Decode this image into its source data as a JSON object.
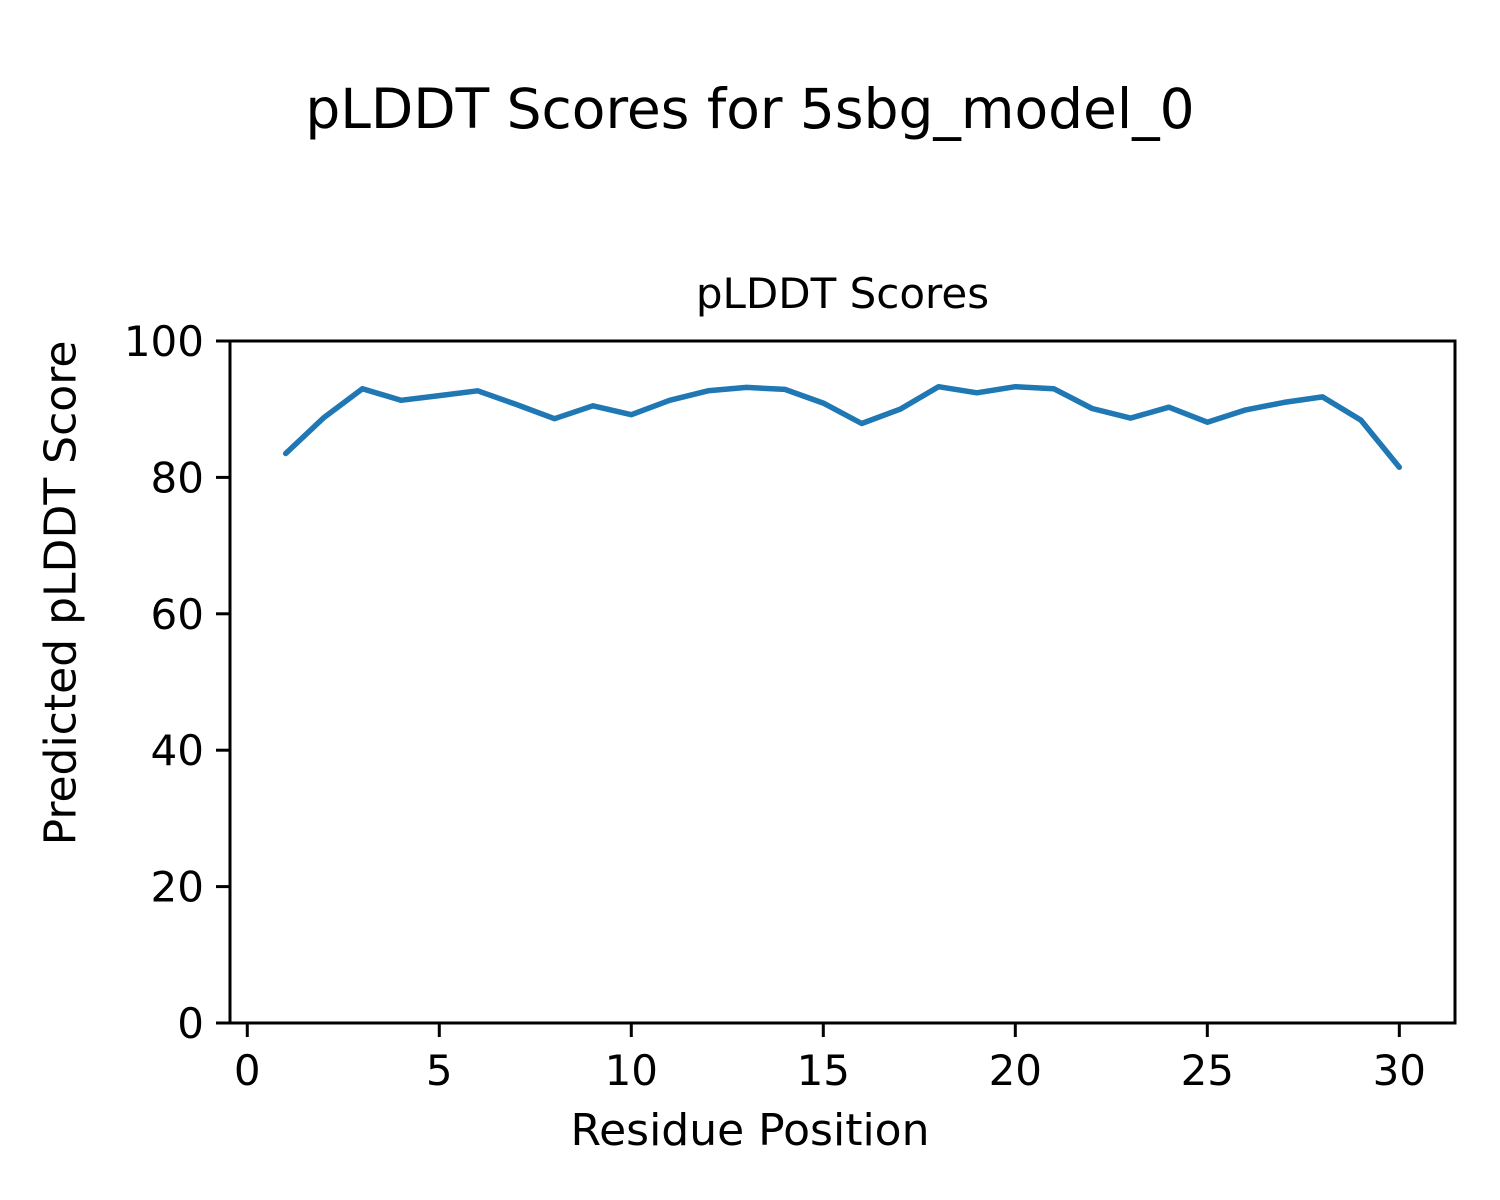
{
  "figure": {
    "suptitle": "pLDDT Scores for 5sbg_model_0",
    "axes_title": "pLDDT Scores",
    "xlabel": "Residue Position",
    "ylabel": "Predicted pLDDT Score"
  },
  "chart_data": {
    "type": "line",
    "title": "pLDDT Scores",
    "suptitle": "pLDDT Scores for 5sbg_model_0",
    "xlabel": "Residue Position",
    "ylabel": "Predicted pLDDT Score",
    "x": [
      1,
      2,
      3,
      4,
      5,
      6,
      7,
      8,
      9,
      10,
      11,
      12,
      13,
      14,
      15,
      16,
      17,
      18,
      19,
      20,
      21,
      22,
      23,
      24,
      25,
      26,
      27,
      28,
      29,
      30
    ],
    "series": [
      {
        "name": "pLDDT",
        "values": [
          83.5,
          88.8,
          93.0,
          91.3,
          92.0,
          92.7,
          90.7,
          88.6,
          90.5,
          89.2,
          91.3,
          92.7,
          93.2,
          92.9,
          90.9,
          87.9,
          90.0,
          93.3,
          92.4,
          93.3,
          93.0,
          90.1,
          88.7,
          90.3,
          88.1,
          89.9,
          91.0,
          91.8,
          88.4,
          81.5
        ]
      }
    ],
    "xlim": [
      -0.45,
      31.45
    ],
    "ylim": [
      0,
      100
    ],
    "xticks": [
      0,
      5,
      10,
      15,
      20,
      25,
      30
    ],
    "yticks": [
      0,
      20,
      40,
      60,
      80,
      100
    ],
    "grid": false,
    "legend_position": "none",
    "line_color": "#1f77b4",
    "axis_color": "#000000"
  }
}
